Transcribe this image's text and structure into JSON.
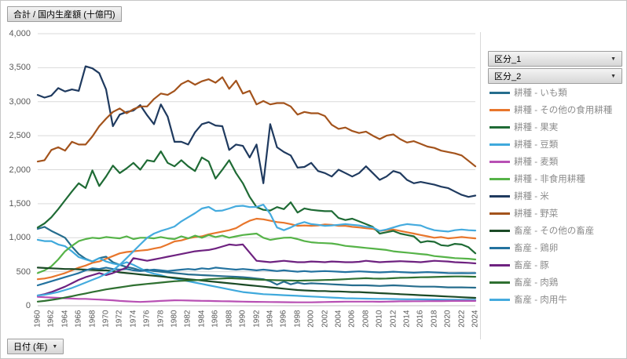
{
  "pivot_buttons": {
    "value_field": "合計 / 国内生産額 (十億円)",
    "legend_field_1": "区分_1",
    "legend_field_2": "区分_2",
    "axis_field": "日付 (年)"
  },
  "icons": {
    "dropdown_arrow": "▼"
  },
  "colors": {
    "background": "#ffffff",
    "gridline": "#d9d9d9",
    "axis_line": "#bfbfbf",
    "tick_text": "#595959",
    "legend_text": "#8c8c8c"
  },
  "chart_data": {
    "type": "line",
    "title": "合計 / 国内生産額 (十億円)",
    "xlabel": "日付 (年)",
    "ylabel": "",
    "ylim": [
      0,
      4000
    ],
    "ytick_step": 500,
    "yticklabels": [
      "0",
      "500",
      "1,000",
      "1,500",
      "2,000",
      "2,500",
      "3,000",
      "3,500",
      "4,000"
    ],
    "x_tick_step": 2,
    "xticklabels": [
      "1960",
      "1962",
      "1964",
      "1966",
      "1968",
      "1970",
      "1972",
      "1974",
      "1976",
      "1978",
      "1980",
      "1982",
      "1984",
      "1986",
      "1988",
      "1990",
      "1992",
      "1994",
      "1996",
      "1998",
      "2000",
      "2002",
      "2004",
      "2006",
      "2008",
      "2010",
      "2012",
      "2014",
      "2016",
      "2018",
      "2020",
      "2022",
      "2024"
    ],
    "grid": "horizontal",
    "legend_position": "right",
    "x": [
      1960,
      1961,
      1962,
      1963,
      1964,
      1965,
      1966,
      1967,
      1968,
      1969,
      1970,
      1971,
      1972,
      1973,
      1974,
      1975,
      1976,
      1977,
      1978,
      1979,
      1980,
      1981,
      1982,
      1983,
      1984,
      1985,
      1986,
      1987,
      1988,
      1989,
      1990,
      1991,
      1992,
      1993,
      1994,
      1995,
      1996,
      1997,
      1998,
      1999,
      2000,
      2001,
      2002,
      2003,
      2004,
      2005,
      2006,
      2007,
      2008,
      2009,
      2010,
      2011,
      2012,
      2013,
      2014,
      2015,
      2016,
      2017,
      2018,
      2019,
      2020,
      2021,
      2022,
      2023,
      2024
    ],
    "series": [
      {
        "name": "耕種 - いも類",
        "color": "#266d8d",
        "values": [
          1130,
          1160,
          1100,
          1050,
          1000,
          870,
          760,
          690,
          650,
          700,
          720,
          640,
          600,
          570,
          550,
          520,
          530,
          510,
          500,
          490,
          480,
          470,
          460,
          455,
          450,
          445,
          440,
          435,
          430,
          425,
          420,
          410,
          400,
          390,
          360,
          310,
          355,
          315,
          340,
          320,
          330,
          325,
          320,
          315,
          310,
          305,
          300,
          300,
          300,
          295,
          290,
          295,
          300,
          295,
          290,
          285,
          280,
          280,
          280,
          275,
          270,
          270,
          270,
          268,
          265
        ]
      },
      {
        "name": "耕種 - その他の食用耕種",
        "color": "#e8762c",
        "values": [
          390,
          400,
          420,
          450,
          480,
          520,
          560,
          590,
          630,
          650,
          690,
          730,
          770,
          790,
          800,
          810,
          820,
          840,
          860,
          900,
          945,
          960,
          990,
          1010,
          1020,
          1050,
          1070,
          1090,
          1110,
          1140,
          1200,
          1250,
          1280,
          1270,
          1250,
          1230,
          1220,
          1200,
          1175,
          1180,
          1175,
          1180,
          1195,
          1190,
          1175,
          1175,
          1160,
          1150,
          1140,
          1130,
          1100,
          1110,
          1120,
          1100,
          1080,
          1060,
          1040,
          1020,
          1000,
          1010,
          990,
          1000,
          1010,
          1000,
          990
        ]
      },
      {
        "name": "耕種 - 果実",
        "color": "#1f6b35",
        "values": [
          1150,
          1210,
          1300,
          1420,
          1550,
          1680,
          1800,
          1730,
          1990,
          1760,
          1900,
          2060,
          1950,
          2020,
          2100,
          2000,
          2140,
          2120,
          2270,
          2100,
          2050,
          2140,
          2050,
          1980,
          2180,
          2120,
          1870,
          2000,
          2140,
          1950,
          1800,
          1600,
          1450,
          1410,
          1400,
          1450,
          1420,
          1520,
          1370,
          1430,
          1410,
          1400,
          1390,
          1390,
          1290,
          1260,
          1280,
          1240,
          1200,
          1160,
          1060,
          1080,
          1100,
          1060,
          1040,
          1020,
          930,
          950,
          940,
          890,
          880,
          910,
          900,
          860,
          770
        ]
      },
      {
        "name": "耕種 - 豆類",
        "color": "#3fa9dc",
        "values": [
          970,
          950,
          950,
          900,
          875,
          800,
          715,
          680,
          650,
          700,
          650,
          620,
          600,
          640,
          600,
          550,
          500,
          470,
          450,
          420,
          400,
          380,
          360,
          340,
          320,
          300,
          280,
          260,
          240,
          220,
          200,
          190,
          180,
          170,
          165,
          160,
          155,
          150,
          145,
          140,
          135,
          130,
          125,
          120,
          115,
          110,
          108,
          106,
          104,
          102,
          100,
          100,
          98,
          96,
          95,
          94,
          93,
          92,
          91,
          90,
          89,
          88,
          87,
          86,
          85
        ]
      },
      {
        "name": "耕種 - 麦類",
        "color": "#b850b4",
        "values": [
          130,
          125,
          120,
          115,
          110,
          105,
          100,
          100,
          95,
          90,
          85,
          80,
          70,
          65,
          60,
          55,
          60,
          65,
          70,
          75,
          80,
          78,
          76,
          74,
          72,
          70,
          68,
          66,
          64,
          62,
          60,
          58,
          56,
          55,
          54,
          53,
          52,
          51,
          50,
          50,
          50,
          52,
          54,
          56,
          58,
          60,
          60,
          60,
          60,
          60,
          58,
          60,
          62,
          64,
          65,
          66,
          66,
          67,
          68,
          68,
          69,
          70,
          70,
          70,
          70
        ]
      },
      {
        "name": "耕種 - 非食用耕種",
        "color": "#56b348",
        "values": [
          480,
          520,
          580,
          680,
          800,
          880,
          950,
          980,
          1000,
          990,
          1010,
          1000,
          990,
          1020,
          980,
          1000,
          1000,
          990,
          1010,
          990,
          980,
          1020,
          990,
          1030,
          1000,
          1040,
          1010,
          1030,
          1000,
          1020,
          1040,
          1050,
          1060,
          1000,
          968,
          985,
          1000,
          1002,
          980,
          950,
          933,
          925,
          920,
          915,
          900,
          880,
          870,
          860,
          850,
          840,
          830,
          820,
          800,
          790,
          780,
          770,
          760,
          750,
          730,
          720,
          710,
          700,
          695,
          690,
          680
        ]
      },
      {
        "name": "耕種 - 米",
        "color": "#1f3a5f",
        "values": [
          3100,
          3060,
          3090,
          3200,
          3150,
          3180,
          3160,
          3520,
          3490,
          3420,
          3180,
          2640,
          2810,
          2850,
          2870,
          2950,
          2800,
          2670,
          2960,
          2780,
          2410,
          2410,
          2370,
          2550,
          2670,
          2700,
          2650,
          2640,
          2290,
          2370,
          2350,
          2180,
          2370,
          1800,
          2670,
          2330,
          2260,
          2210,
          2030,
          2040,
          2100,
          1980,
          1950,
          1900,
          2000,
          1950,
          1900,
          1950,
          2050,
          1950,
          1850,
          1900,
          1980,
          1950,
          1850,
          1800,
          1820,
          1800,
          1780,
          1750,
          1730,
          1680,
          1630,
          1600,
          1620
        ]
      },
      {
        "name": "耕種 - 野菜",
        "color": "#a3531c",
        "values": [
          2120,
          2140,
          2290,
          2330,
          2280,
          2410,
          2370,
          2370,
          2490,
          2640,
          2750,
          2850,
          2900,
          2830,
          2890,
          2930,
          2930,
          3040,
          3120,
          3100,
          3160,
          3260,
          3310,
          3250,
          3300,
          3330,
          3280,
          3360,
          3190,
          3310,
          3120,
          3160,
          2960,
          3010,
          2960,
          2980,
          2980,
          2930,
          2810,
          2850,
          2830,
          2830,
          2790,
          2660,
          2600,
          2620,
          2570,
          2540,
          2560,
          2500,
          2450,
          2500,
          2520,
          2450,
          2400,
          2420,
          2380,
          2340,
          2320,
          2280,
          2260,
          2240,
          2210,
          2130,
          2050
        ]
      },
      {
        "name": "畜産 - その他の畜産",
        "color": "#1b4a26",
        "values": [
          560,
          555,
          550,
          545,
          540,
          540,
          535,
          530,
          525,
          520,
          520,
          510,
          490,
          480,
          470,
          460,
          450,
          440,
          430,
          420,
          410,
          400,
          390,
          380,
          370,
          360,
          350,
          340,
          330,
          320,
          310,
          300,
          290,
          280,
          270,
          260,
          250,
          240,
          230,
          225,
          220,
          215,
          215,
          210,
          210,
          205,
          200,
          200,
          195,
          190,
          185,
          180,
          175,
          170,
          165,
          160,
          155,
          150,
          145,
          140,
          135,
          130,
          125,
          120,
          115
        ]
      },
      {
        "name": "畜産 - 鶏卵",
        "color": "#23729f",
        "values": [
          300,
          330,
          360,
          390,
          420,
          450,
          480,
          520,
          550,
          540,
          560,
          540,
          530,
          540,
          520,
          510,
          520,
          530,
          520,
          510,
          520,
          530,
          540,
          530,
          550,
          540,
          560,
          550,
          540,
          530,
          540,
          530,
          520,
          530,
          520,
          510,
          520,
          510,
          500,
          510,
          500,
          505,
          510,
          505,
          500,
          495,
          500,
          505,
          500,
          495,
          490,
          495,
          500,
          495,
          490,
          485,
          490,
          495,
          490,
          485,
          480,
          478,
          480,
          478,
          480
        ]
      },
      {
        "name": "畜産 - 豚",
        "color": "#6e2280",
        "values": [
          150,
          170,
          200,
          240,
          280,
          330,
          380,
          420,
          450,
          480,
          450,
          480,
          520,
          560,
          700,
          680,
          660,
          680,
          700,
          720,
          740,
          760,
          780,
          800,
          810,
          820,
          840,
          870,
          900,
          890,
          900,
          780,
          660,
          650,
          640,
          650,
          660,
          650,
          640,
          640,
          650,
          645,
          640,
          650,
          645,
          640,
          640,
          645,
          660,
          650,
          640,
          645,
          650,
          655,
          650,
          645,
          640,
          650,
          660,
          655,
          650,
          640,
          635,
          630,
          622
        ]
      },
      {
        "name": "畜産 - 肉鶏",
        "color": "#2f7031",
        "values": [
          60,
          70,
          85,
          100,
          120,
          140,
          160,
          180,
          200,
          220,
          240,
          255,
          270,
          285,
          300,
          310,
          320,
          330,
          340,
          350,
          360,
          365,
          370,
          375,
          380,
          390,
          395,
          400,
          405,
          400,
          395,
          390,
          385,
          380,
          378,
          375,
          372,
          370,
          368,
          370,
          372,
          375,
          378,
          380,
          385,
          390,
          395,
          400,
          405,
          400,
          398,
          400,
          405,
          410,
          412,
          415,
          418,
          420,
          422,
          425,
          428,
          430,
          430,
          428,
          425
        ]
      },
      {
        "name": "畜産 - 肉用牛",
        "color": "#45abde",
        "values": [
          150,
          160,
          180,
          200,
          230,
          260,
          300,
          340,
          380,
          420,
          470,
          520,
          600,
          700,
          800,
          900,
          1000,
          1060,
          1100,
          1130,
          1164,
          1240,
          1300,
          1360,
          1429,
          1452,
          1394,
          1400,
          1429,
          1463,
          1470,
          1450,
          1452,
          1486,
          1350,
          1150,
          1110,
          1150,
          1200,
          1230,
          1200,
          1190,
          1175,
          1180,
          1190,
          1200,
          1190,
          1180,
          1160,
          1150,
          1100,
          1120,
          1150,
          1180,
          1200,
          1190,
          1180,
          1140,
          1110,
          1100,
          1090,
          1110,
          1120,
          1110,
          1105
        ]
      }
    ]
  }
}
